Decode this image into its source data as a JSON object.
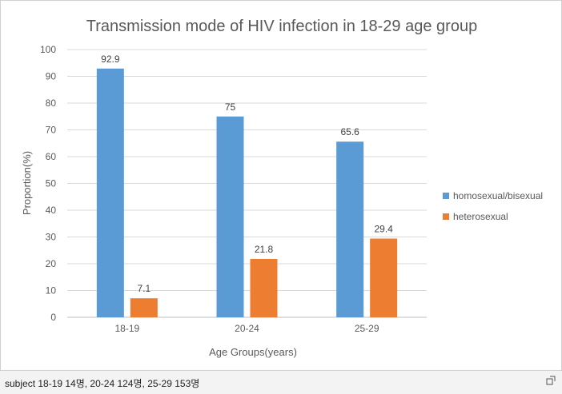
{
  "chart_data": {
    "type": "bar",
    "title": "Transmission mode of HIV infection in 18-29 age group",
    "xlabel": "Age Groups(years)",
    "ylabel": "Proportion(%)",
    "ylim": [
      0,
      100
    ],
    "yticks": [
      0,
      10,
      20,
      30,
      40,
      50,
      60,
      70,
      80,
      90,
      100
    ],
    "categories": [
      "18-19",
      "20-24",
      "25-29"
    ],
    "series": [
      {
        "name": "homosexual/bisexual",
        "values": [
          92.9,
          75,
          65.6
        ],
        "color": "#5B9BD5"
      },
      {
        "name": "heterosexual",
        "values": [
          7.1,
          21.8,
          29.4
        ],
        "color": "#ED7D31"
      }
    ],
    "grid": true,
    "legend_position": "right"
  },
  "caption": "subject 18-19 14명, 20-24 124명, 25-29 153명",
  "icons": {
    "expand": "expand-icon"
  }
}
